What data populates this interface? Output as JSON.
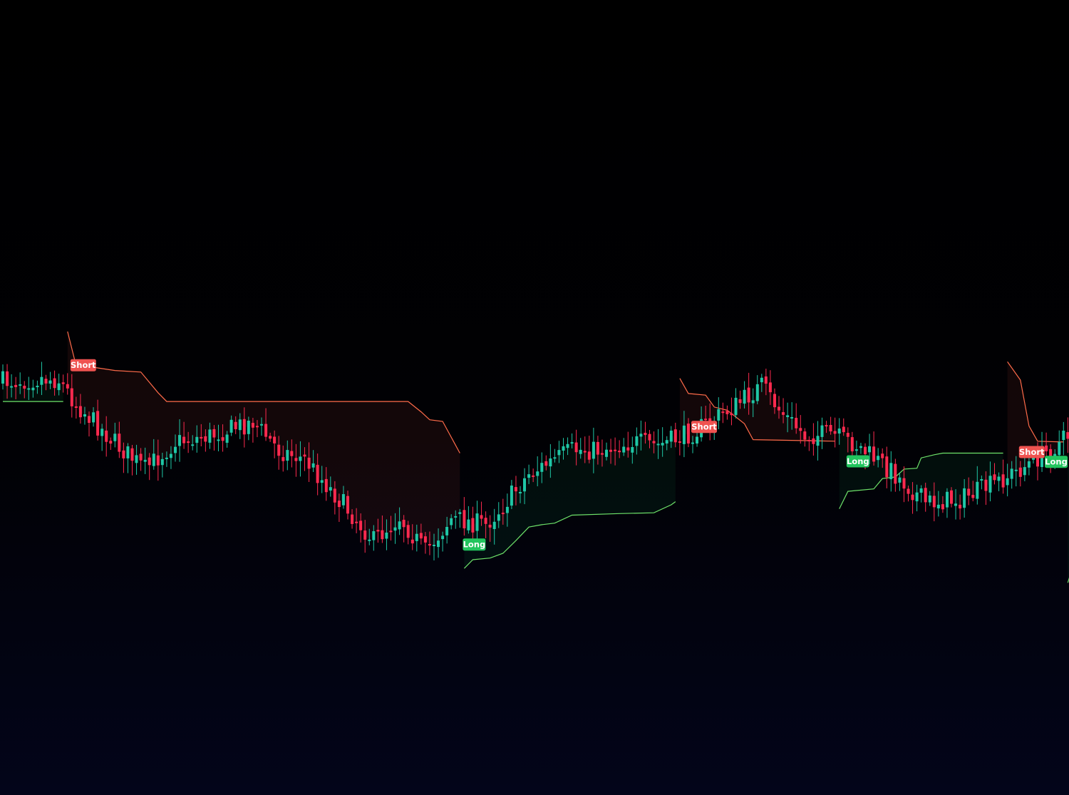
{
  "chart_data": {
    "type": "candlestick",
    "indicator": "supertrend",
    "colors": {
      "bull": "#26a69a",
      "bull_candle": "#1fc7a6",
      "bear": "#f23645",
      "bear_candle": "#ff2a4f",
      "long": "#22c55e",
      "short": "#ef5350",
      "short_line": "#ff6b4a",
      "long_line": "#6ee36a",
      "background": "#000000"
    },
    "y_range": [
      0,
      1000
    ],
    "anchors": [
      [
        0,
        480
      ],
      [
        9,
        476
      ],
      [
        13,
        478
      ],
      [
        17,
        508
      ],
      [
        27,
        562
      ],
      [
        33,
        590
      ],
      [
        40,
        556
      ],
      [
        48,
        548
      ],
      [
        58,
        530
      ],
      [
        64,
        566
      ],
      [
        70,
        578
      ],
      [
        78,
        628
      ],
      [
        86,
        680
      ],
      [
        92,
        650
      ],
      [
        98,
        694
      ],
      [
        104,
        652
      ],
      [
        112,
        660
      ],
      [
        116,
        636
      ],
      [
        122,
        596
      ],
      [
        132,
        566
      ],
      [
        138,
        566
      ],
      [
        146,
        556
      ],
      [
        152,
        560
      ],
      [
        160,
        544
      ],
      [
        170,
        510
      ],
      [
        176,
        485
      ],
      [
        180,
        515
      ],
      [
        186,
        548
      ],
      [
        192,
        546
      ],
      [
        198,
        560
      ],
      [
        206,
        592
      ],
      [
        214,
        632
      ],
      [
        222,
        628
      ],
      [
        230,
        608
      ],
      [
        236,
        590
      ],
      [
        244,
        562
      ],
      [
        252,
        524
      ],
      [
        262,
        490
      ],
      [
        270,
        484
      ],
      [
        276,
        492
      ],
      [
        282,
        532
      ],
      [
        288,
        494
      ],
      [
        296,
        486
      ],
      [
        302,
        510
      ],
      [
        308,
        556
      ],
      [
        316,
        585
      ],
      [
        322,
        586
      ],
      [
        328,
        618
      ],
      [
        336,
        612
      ],
      [
        344,
        580
      ],
      [
        352,
        600
      ]
    ],
    "segments": [
      {
        "trend": "long",
        "start": 0,
        "end": 14,
        "stop": [
          [
            0,
            505
          ],
          [
            14,
            505
          ]
        ]
      },
      {
        "trend": "short",
        "start": 15,
        "end": 106,
        "stop": [
          [
            15,
            417
          ],
          [
            17,
            460
          ],
          [
            21,
            462
          ],
          [
            26,
            466
          ],
          [
            32,
            468
          ],
          [
            36,
            494
          ],
          [
            38,
            505
          ],
          [
            50,
            505
          ],
          [
            94,
            505
          ],
          [
            97,
            518
          ],
          [
            99,
            528
          ],
          [
            102,
            530
          ],
          [
            106,
            570
          ]
        ]
      },
      {
        "trend": "long",
        "start": 107,
        "end": 156,
        "stop": [
          [
            107,
            715
          ],
          [
            109,
            704
          ],
          [
            113,
            702
          ],
          [
            116,
            696
          ],
          [
            119,
            680
          ],
          [
            122,
            663
          ],
          [
            125,
            660
          ],
          [
            128,
            658
          ],
          [
            132,
            648
          ],
          [
            143,
            646
          ],
          [
            151,
            645
          ],
          [
            155,
            635
          ],
          [
            156,
            631
          ]
        ]
      },
      {
        "trend": "short",
        "start": 157,
        "end": 193,
        "stop": [
          [
            157,
            476
          ],
          [
            159,
            495
          ],
          [
            163,
            497
          ],
          [
            165,
            512
          ],
          [
            168,
            516
          ],
          [
            172,
            533
          ],
          [
            174,
            553
          ],
          [
            193,
            555
          ]
        ]
      },
      {
        "trend": "long",
        "start": 194,
        "end": 232,
        "stop": [
          [
            194,
            640
          ],
          [
            196,
            618
          ],
          [
            202,
            615
          ],
          [
            204,
            602
          ],
          [
            207,
            600
          ],
          [
            209,
            590
          ],
          [
            212,
            589
          ],
          [
            213,
            576
          ],
          [
            216,
            572
          ],
          [
            218,
            570
          ],
          [
            232,
            570
          ]
        ]
      },
      {
        "trend": "short",
        "start": 233,
        "end": 246,
        "stop": [
          [
            233,
            455
          ],
          [
            236,
            478
          ],
          [
            238,
            536
          ],
          [
            240,
            555
          ],
          [
            246,
            556
          ]
        ]
      },
      {
        "trend": "long",
        "start": 247,
        "end": 251,
        "stop": [
          [
            247,
            733
          ],
          [
            250,
            680
          ],
          [
            251,
            677
          ]
        ]
      }
    ],
    "signals": [
      {
        "bar": 16,
        "type": "Short",
        "label": "Short"
      },
      {
        "bar": 107,
        "type": "Long",
        "label": "Long"
      },
      {
        "bar": 160,
        "type": "Short",
        "label": "Short"
      },
      {
        "bar": 196,
        "type": "Long",
        "label": "Long"
      },
      {
        "bar": 236,
        "type": "Short",
        "label": "Short"
      },
      {
        "bar": 247,
        "type": "Long",
        "label": "Long"
      }
    ]
  }
}
